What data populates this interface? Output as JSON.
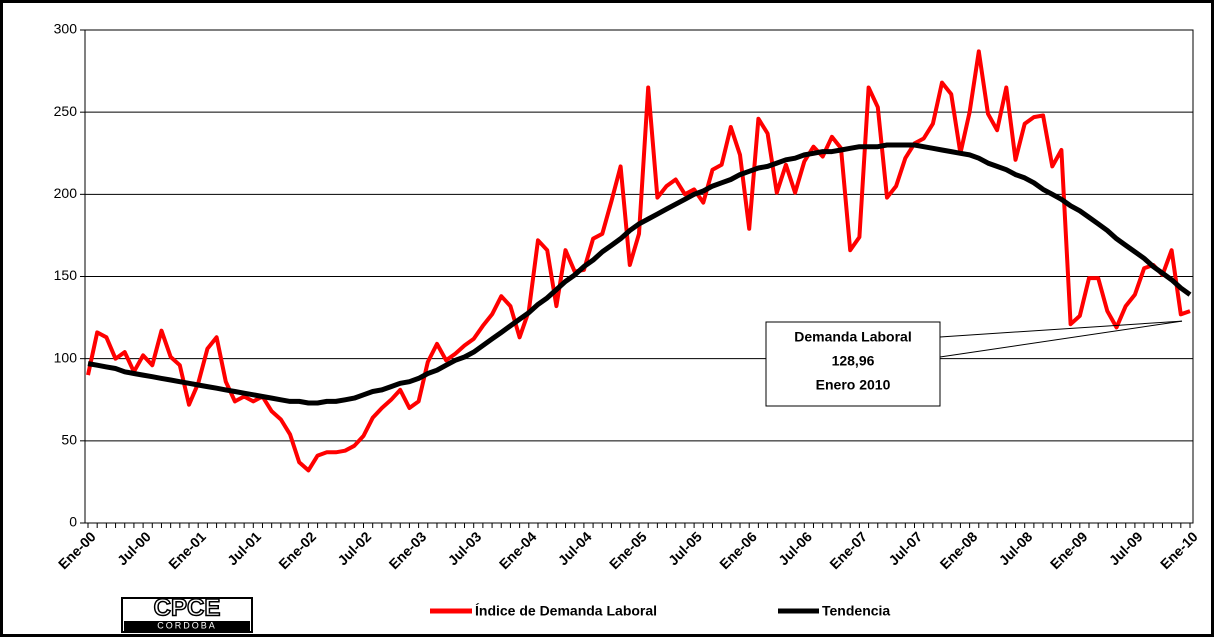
{
  "chart_data": {
    "type": "line",
    "categories": [
      "Ene-00",
      null,
      null,
      null,
      null,
      null,
      "Jul-00",
      null,
      null,
      null,
      null,
      null,
      "Ene-01",
      null,
      null,
      null,
      null,
      null,
      "Jul-01",
      null,
      null,
      null,
      null,
      null,
      "Ene-02",
      null,
      null,
      null,
      null,
      null,
      "Jul-02",
      null,
      null,
      null,
      null,
      null,
      "Ene-03",
      null,
      null,
      null,
      null,
      null,
      "Jul-03",
      null,
      null,
      null,
      null,
      null,
      "Ene-04",
      null,
      null,
      null,
      null,
      null,
      "Jul-04",
      null,
      null,
      null,
      null,
      null,
      "Ene-05",
      null,
      null,
      null,
      null,
      null,
      "Jul-05",
      null,
      null,
      null,
      null,
      null,
      "Ene-06",
      null,
      null,
      null,
      null,
      null,
      "Jul-06",
      null,
      null,
      null,
      null,
      null,
      "Ene-07",
      null,
      null,
      null,
      null,
      null,
      "Jul-07",
      null,
      null,
      null,
      null,
      null,
      "Ene-08",
      null,
      null,
      null,
      null,
      null,
      "Jul-08",
      null,
      null,
      null,
      null,
      null,
      "Ene-09",
      null,
      null,
      null,
      null,
      null,
      "Jul-09",
      null,
      null,
      null,
      null,
      null,
      "Ene-10"
    ],
    "series": [
      {
        "name": "Índice de Demanda Laboral",
        "color": "#ff0000",
        "values": [
          90,
          116,
          113,
          100,
          104,
          92,
          102,
          96,
          117,
          101,
          96,
          72,
          85,
          106,
          113,
          86,
          74,
          77,
          74,
          77,
          68,
          63,
          54,
          37,
          32,
          41,
          43,
          43,
          44,
          47,
          53,
          64,
          70,
          75,
          81,
          70,
          74,
          98,
          109,
          99,
          103,
          108,
          112,
          120,
          127,
          138,
          132,
          113,
          129,
          172,
          166,
          132,
          166,
          153,
          154,
          173,
          176,
          196,
          217,
          157,
          176,
          265,
          198,
          205,
          209,
          200,
          203,
          195,
          215,
          218,
          241,
          224,
          179,
          246,
          237,
          201,
          218,
          201,
          220,
          229,
          223,
          235,
          228,
          166,
          174,
          265,
          253,
          198,
          205,
          222,
          231,
          234,
          243,
          268,
          261,
          225,
          250,
          287,
          249,
          239,
          265,
          221,
          243,
          247,
          248,
          217,
          227,
          121,
          126,
          149,
          149,
          129,
          119,
          132,
          139,
          155,
          157,
          151,
          166,
          127,
          128.96
        ]
      },
      {
        "name": "Tendencia",
        "color": "#000000",
        "values": [
          97,
          96,
          95,
          94,
          92,
          91,
          90,
          89,
          88,
          87,
          86,
          85,
          84,
          83,
          82,
          81,
          80,
          79,
          78,
          77,
          76,
          75,
          74,
          74,
          73,
          73,
          74,
          74,
          75,
          76,
          78,
          80,
          81,
          83,
          85,
          86,
          88,
          91,
          93,
          96,
          99,
          101,
          104,
          108,
          112,
          116,
          120,
          124,
          128,
          133,
          137,
          142,
          147,
          151,
          156,
          160,
          165,
          169,
          173,
          178,
          182,
          185,
          188,
          191,
          194,
          197,
          200,
          202,
          205,
          207,
          209,
          212,
          214,
          216,
          217,
          219,
          221,
          222,
          224,
          225,
          226,
          226,
          227,
          228,
          229,
          229,
          229,
          230,
          230,
          230,
          230,
          229,
          228,
          227,
          226,
          225,
          224,
          222,
          219,
          217,
          215,
          212,
          210,
          207,
          203,
          200,
          197,
          193,
          190,
          186,
          182,
          178,
          173,
          169,
          165,
          161,
          156,
          152,
          148,
          143,
          139
        ]
      }
    ],
    "ylim": [
      0,
      300
    ],
    "yticks": [
      0,
      50,
      100,
      150,
      200,
      250,
      300
    ],
    "grid": true,
    "annotation": {
      "lines": [
        "Demanda Laboral",
        "128,96",
        "Enero 2010"
      ]
    },
    "logo": {
      "title": "CPCE",
      "subtitle": "CORDOBA"
    }
  }
}
